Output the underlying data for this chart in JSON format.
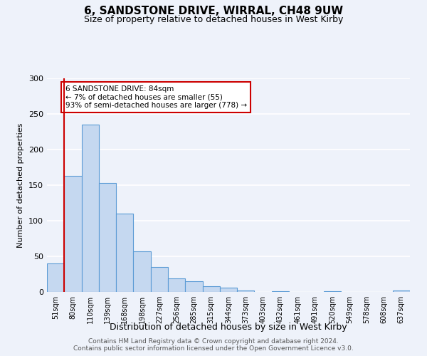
{
  "title": "6, SANDSTONE DRIVE, WIRRAL, CH48 9UW",
  "subtitle": "Size of property relative to detached houses in West Kirby",
  "xlabel": "Distribution of detached houses by size in West Kirby",
  "ylabel": "Number of detached properties",
  "bar_labels": [
    "51sqm",
    "80sqm",
    "110sqm",
    "139sqm",
    "168sqm",
    "198sqm",
    "227sqm",
    "256sqm",
    "285sqm",
    "315sqm",
    "344sqm",
    "373sqm",
    "403sqm",
    "432sqm",
    "461sqm",
    "491sqm",
    "520sqm",
    "549sqm",
    "578sqm",
    "608sqm",
    "637sqm"
  ],
  "bar_values": [
    40,
    163,
    235,
    153,
    110,
    57,
    35,
    19,
    15,
    8,
    6,
    2,
    0,
    1,
    0,
    0,
    1,
    0,
    0,
    0,
    2
  ],
  "bar_color": "#c5d8f0",
  "bar_edge_color": "#5b9bd5",
  "vline_color": "#cc0000",
  "vline_pos": 0.5,
  "annotation_lines": [
    "6 SANDSTONE DRIVE: 84sqm",
    "← 7% of detached houses are smaller (55)",
    "93% of semi-detached houses are larger (778) →"
  ],
  "annotation_box_color": "#ffffff",
  "annotation_box_edge": "#cc0000",
  "ylim": [
    0,
    300
  ],
  "yticks": [
    0,
    50,
    100,
    150,
    200,
    250,
    300
  ],
  "footer_line1": "Contains HM Land Registry data © Crown copyright and database right 2024.",
  "footer_line2": "Contains public sector information licensed under the Open Government Licence v3.0.",
  "bg_color": "#eef2fa",
  "grid_color": "#ffffff",
  "title_fontsize": 11,
  "subtitle_fontsize": 9,
  "ylabel_fontsize": 8,
  "xlabel_fontsize": 9,
  "tick_fontsize": 7,
  "annotation_fontsize": 7.5,
  "footer_fontsize": 6.5
}
